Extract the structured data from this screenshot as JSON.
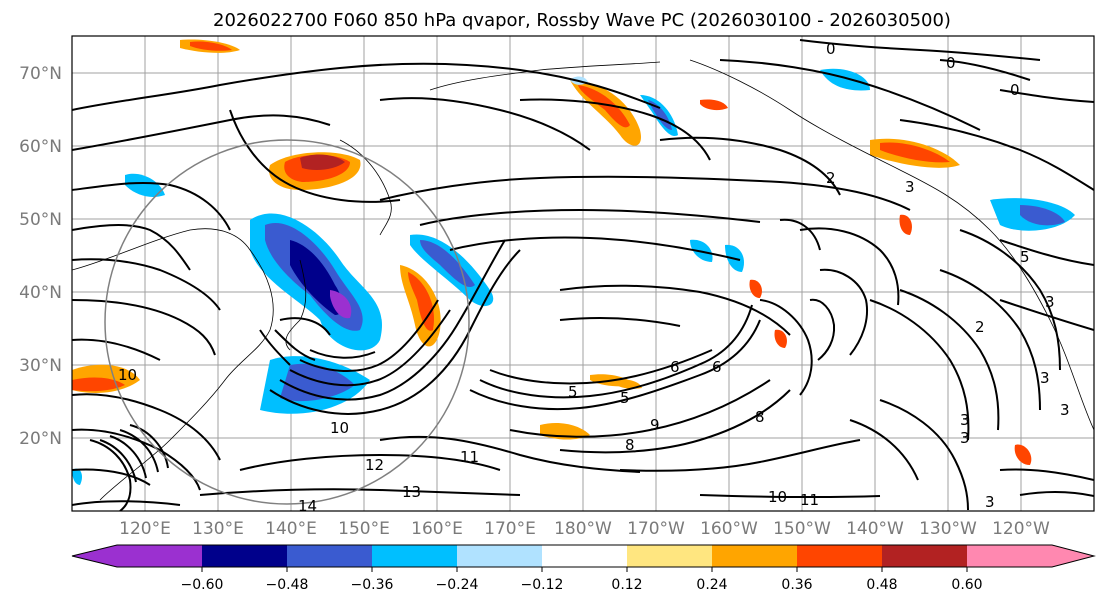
{
  "title": "2026022700 F060 850 hPa qvapor, Rossby Wave PC (2026030100 - 2026030500)",
  "lat_labels": [
    "70°N",
    "60°N",
    "50°N",
    "40°N",
    "30°N",
    "20°N"
  ],
  "lon_labels": [
    "120°E",
    "130°E",
    "140°E",
    "150°E",
    "160°E",
    "170°E",
    "180°W",
    "170°W",
    "160°W",
    "150°W",
    "140°W",
    "130°W",
    "120°W"
  ],
  "colorbar": {
    "ticks": [
      "−0.60",
      "−0.48",
      "−0.36",
      "−0.24",
      "−0.12",
      "0.12",
      "0.24",
      "0.36",
      "0.48",
      "0.60"
    ],
    "colors": [
      "#9b30d0",
      "#00008b",
      "#3a5bd0",
      "#00bfff",
      "#b0e2ff",
      "#ffffff",
      "#ffe680",
      "#ffa500",
      "#ff4500",
      "#b22222",
      "#ff88b0"
    ]
  },
  "contour_labels": [
    "0",
    "0",
    "0",
    "2",
    "3",
    "5",
    "2",
    "3",
    "3",
    "3",
    "3",
    "3",
    "5",
    "5",
    "6",
    "6",
    "8",
    "8",
    "9",
    "10",
    "10",
    "11",
    "11",
    "12",
    "13",
    "14",
    "10",
    "3"
  ],
  "colors": {
    "contour": "#000000",
    "grid": "#a0a0a0",
    "circle": "#808080"
  }
}
